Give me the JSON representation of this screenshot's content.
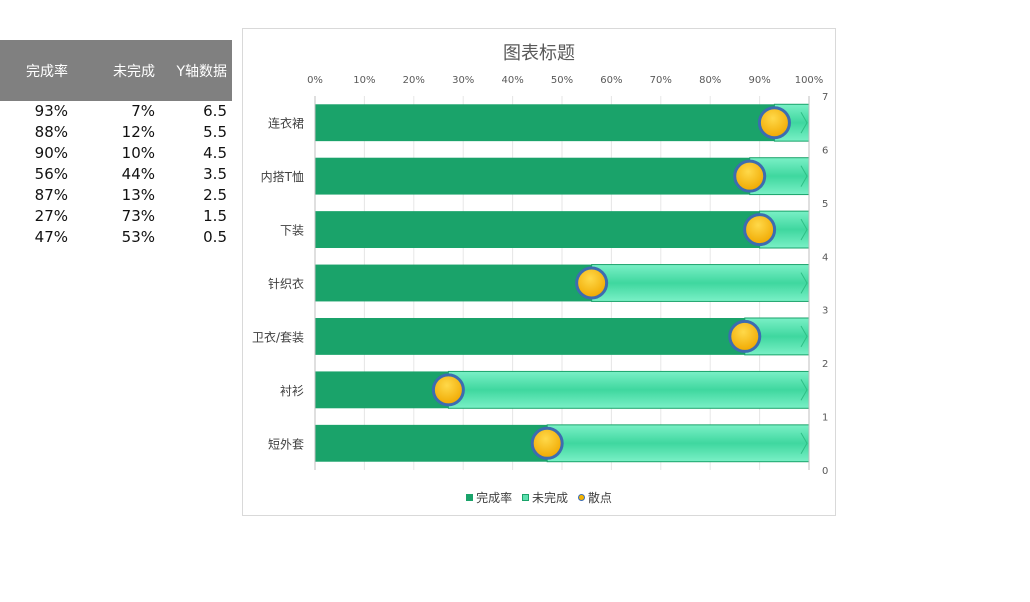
{
  "table": {
    "headers": [
      "完成率",
      "未完成",
      "Y轴数据"
    ],
    "rows": [
      [
        "93%",
        "7%",
        "6.5"
      ],
      [
        "88%",
        "12%",
        "5.5"
      ],
      [
        "90%",
        "10%",
        "4.5"
      ],
      [
        "56%",
        "44%",
        "3.5"
      ],
      [
        "87%",
        "13%",
        "2.5"
      ],
      [
        "27%",
        "73%",
        "1.5"
      ],
      [
        "47%",
        "53%",
        "0.5"
      ]
    ]
  },
  "chart_data": {
    "type": "bar",
    "orientation": "horizontal-stacked-with-scatter",
    "title": "图表标题",
    "categories": [
      "连衣裙",
      "内搭T恤",
      "下装",
      "针织衣",
      "卫衣/套装",
      "衬衫",
      "短外套"
    ],
    "series": [
      {
        "name": "完成率",
        "values": [
          0.93,
          0.88,
          0.9,
          0.56,
          0.87,
          0.27,
          0.47
        ],
        "color": "#1aa36a"
      },
      {
        "name": "未完成",
        "values": [
          0.07,
          0.12,
          0.1,
          0.44,
          0.13,
          0.73,
          0.53
        ],
        "color": "#5ee0b0"
      },
      {
        "name": "散点",
        "type": "scatter",
        "x": [
          0.93,
          0.88,
          0.9,
          0.56,
          0.87,
          0.27,
          0.47
        ],
        "y": [
          6.5,
          5.5,
          4.5,
          3.5,
          2.5,
          1.5,
          0.5
        ],
        "color": "#f6b400",
        "edge_color": "#3d6cb0"
      }
    ],
    "x_ticks": [
      "0%",
      "10%",
      "20%",
      "30%",
      "40%",
      "50%",
      "60%",
      "70%",
      "80%",
      "90%",
      "100%"
    ],
    "xlim": [
      0,
      1
    ],
    "y2_ticks": [
      "0",
      "1",
      "2",
      "3",
      "4",
      "5",
      "6",
      "7"
    ],
    "y2lim": [
      0,
      7
    ],
    "x_axis_position": "top",
    "legend": [
      "完成率",
      "未完成",
      "散点"
    ],
    "legend_position": "bottom",
    "grid": true
  }
}
